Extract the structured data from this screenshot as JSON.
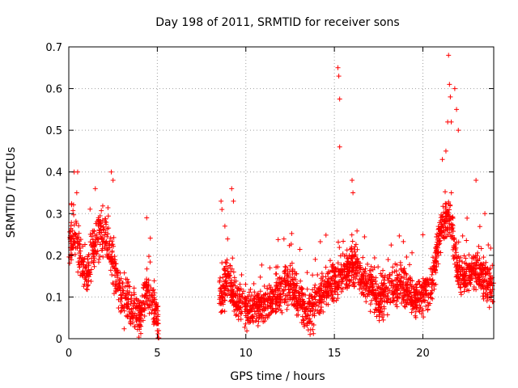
{
  "chart_data": {
    "type": "scatter",
    "title": "Day 198 of 2011, SRMTID for receiver sons",
    "xlabel": "GPS time / hours",
    "ylabel": "SRMTID / TECUs",
    "xlim": [
      0,
      24
    ],
    "ylim": [
      0,
      0.7
    ],
    "x_ticks": [
      0,
      5,
      10,
      15,
      20
    ],
    "x_tick_labels": [
      "0",
      "5",
      "10",
      "15",
      "20"
    ],
    "y_ticks": [
      0,
      0.1,
      0.2,
      0.3,
      0.4,
      0.5,
      0.6,
      0.7
    ],
    "y_tick_labels": [
      "0",
      "0.1",
      "0.2",
      "0.3",
      "0.4",
      "0.5",
      "0.6",
      "0.7"
    ],
    "grid": true,
    "marker": "plus",
    "marker_color": "#ff0000",
    "series": [
      {
        "name": "SRMTID",
        "color": "#ff0000",
        "segments": [
          {
            "x_start": 0.0,
            "x_end": 5.1,
            "points_per_hour": 120,
            "profile": [
              [
                0.0,
                0.2
              ],
              [
                0.3,
                0.26
              ],
              [
                0.6,
                0.2
              ],
              [
                1.0,
                0.15
              ],
              [
                1.5,
                0.24
              ],
              [
                2.0,
                0.26
              ],
              [
                2.4,
                0.2
              ],
              [
                3.0,
                0.1
              ],
              [
                3.6,
                0.07
              ],
              [
                4.0,
                0.05
              ],
              [
                4.4,
                0.12
              ],
              [
                4.8,
                0.08
              ],
              [
                5.1,
                0.02
              ]
            ],
            "spread": 0.05
          },
          {
            "x_start": 8.5,
            "x_end": 24.0,
            "points_per_hour": 130,
            "profile": [
              [
                8.5,
                0.1
              ],
              [
                9.0,
                0.15
              ],
              [
                9.3,
                0.1
              ],
              [
                10.0,
                0.07
              ],
              [
                11.0,
                0.08
              ],
              [
                12.0,
                0.11
              ],
              [
                12.5,
                0.13
              ],
              [
                13.0,
                0.1
              ],
              [
                13.5,
                0.06
              ],
              [
                14.0,
                0.09
              ],
              [
                14.5,
                0.13
              ],
              [
                15.0,
                0.14
              ],
              [
                15.5,
                0.16
              ],
              [
                16.0,
                0.18
              ],
              [
                16.5,
                0.15
              ],
              [
                17.0,
                0.12
              ],
              [
                17.5,
                0.09
              ],
              [
                18.0,
                0.12
              ],
              [
                19.0,
                0.13
              ],
              [
                19.5,
                0.1
              ],
              [
                20.0,
                0.1
              ],
              [
                20.5,
                0.13
              ],
              [
                21.0,
                0.26
              ],
              [
                21.5,
                0.3
              ],
              [
                22.0,
                0.16
              ],
              [
                22.5,
                0.15
              ],
              [
                23.0,
                0.17
              ],
              [
                23.5,
                0.14
              ],
              [
                24.0,
                0.12
              ]
            ],
            "spread": 0.045
          }
        ],
        "spikes": [
          {
            "x": 0.3,
            "y": 0.4
          },
          {
            "x": 0.45,
            "y": 0.35
          },
          {
            "x": 0.5,
            "y": 0.4
          },
          {
            "x": 2.4,
            "y": 0.4
          },
          {
            "x": 2.5,
            "y": 0.38
          },
          {
            "x": 4.4,
            "y": 0.29
          },
          {
            "x": 8.6,
            "y": 0.33
          },
          {
            "x": 8.65,
            "y": 0.31
          },
          {
            "x": 9.2,
            "y": 0.36
          },
          {
            "x": 9.3,
            "y": 0.33
          },
          {
            "x": 15.2,
            "y": 0.65
          },
          {
            "x": 15.25,
            "y": 0.63
          },
          {
            "x": 15.3,
            "y": 0.575
          },
          {
            "x": 15.3,
            "y": 0.46
          },
          {
            "x": 16.0,
            "y": 0.38
          },
          {
            "x": 16.05,
            "y": 0.35
          },
          {
            "x": 21.1,
            "y": 0.43
          },
          {
            "x": 21.3,
            "y": 0.45
          },
          {
            "x": 21.4,
            "y": 0.52
          },
          {
            "x": 21.45,
            "y": 0.68
          },
          {
            "x": 21.5,
            "y": 0.61
          },
          {
            "x": 21.55,
            "y": 0.58
          },
          {
            "x": 21.6,
            "y": 0.52
          },
          {
            "x": 21.8,
            "y": 0.6
          },
          {
            "x": 21.9,
            "y": 0.55
          },
          {
            "x": 22.0,
            "y": 0.5
          },
          {
            "x": 23.0,
            "y": 0.38
          },
          {
            "x": 23.5,
            "y": 0.3
          }
        ]
      }
    ]
  }
}
